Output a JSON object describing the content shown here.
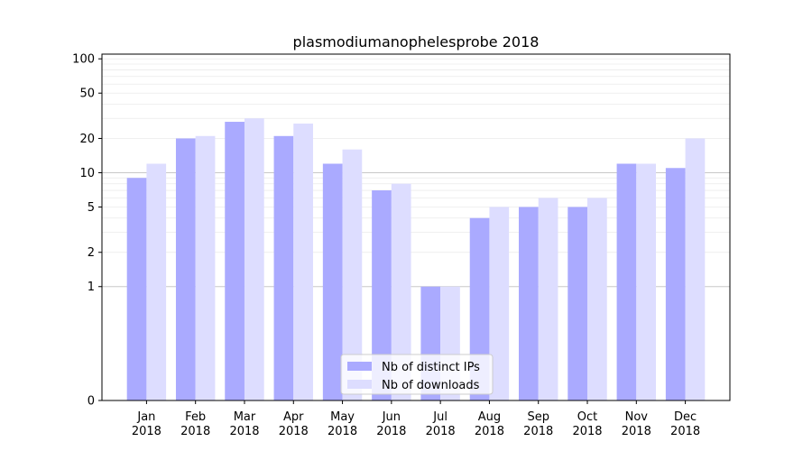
{
  "chart_data": {
    "type": "bar",
    "title": "plasmodiumanophelesprobe 2018",
    "xlabel": "",
    "ylabel": "",
    "y_scale": "symlog",
    "ylim": [
      0,
      110
    ],
    "y_ticks": [
      0,
      1,
      2,
      5,
      10,
      20,
      50,
      100
    ],
    "categories": [
      [
        "Jan",
        "2018"
      ],
      [
        "Feb",
        "2018"
      ],
      [
        "Mar",
        "2018"
      ],
      [
        "Apr",
        "2018"
      ],
      [
        "May",
        "2018"
      ],
      [
        "Jun",
        "2018"
      ],
      [
        "Jul",
        "2018"
      ],
      [
        "Aug",
        "2018"
      ],
      [
        "Sep",
        "2018"
      ],
      [
        "Oct",
        "2018"
      ],
      [
        "Nov",
        "2018"
      ],
      [
        "Dec",
        "2018"
      ]
    ],
    "series": [
      {
        "name": "Nb of distinct IPs",
        "color": "#aaaaff",
        "values": [
          9,
          20,
          28,
          21,
          12,
          7,
          1,
          4,
          5,
          5,
          12,
          11
        ]
      },
      {
        "name": "Nb of downloads",
        "color": "#ddddff",
        "values": [
          12,
          21,
          30,
          27,
          16,
          8,
          1,
          5,
          6,
          6,
          12,
          20
        ]
      }
    ],
    "legend_position": "bottom-center",
    "grid": true
  }
}
